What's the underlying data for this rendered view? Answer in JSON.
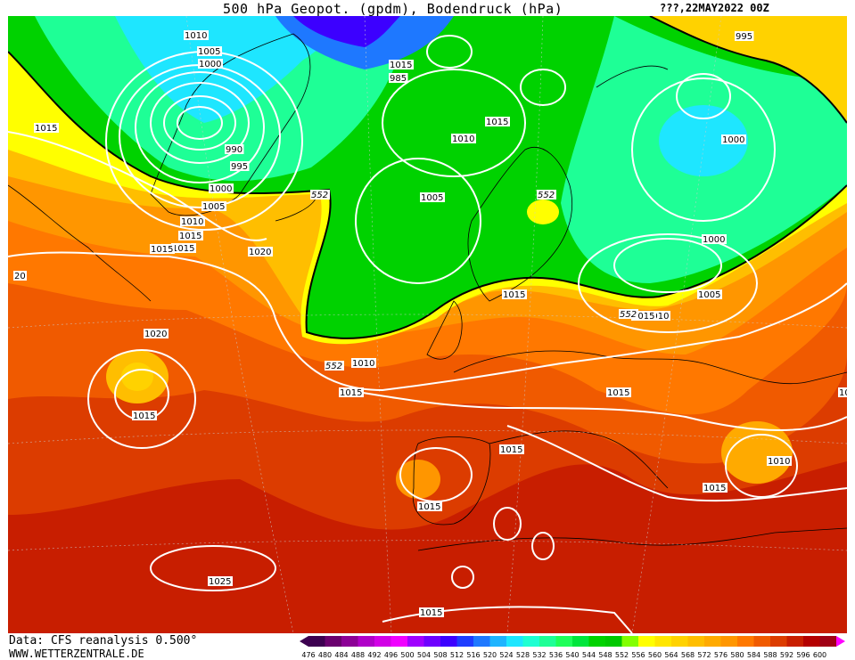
{
  "title": "500 hPa Geopot. (gpdm), Bodendruck (hPa)",
  "date": "???,22MAY2022 00Z",
  "data_source": "Data: CFS reanalysis 0.500°",
  "website": "WWW.WETTERZENTRALE.DE",
  "legend": {
    "values": [
      "476",
      "480",
      "484",
      "488",
      "492",
      "496",
      "500",
      "504",
      "508",
      "512",
      "516",
      "520",
      "524",
      "528",
      "532",
      "536",
      "540",
      "544",
      "548",
      "552",
      "556",
      "560",
      "564",
      "568",
      "572",
      "576",
      "580",
      "584",
      "588",
      "592",
      "596",
      "600"
    ],
    "colors": [
      "#3c0050",
      "#6a006e",
      "#8c0096",
      "#b000c8",
      "#d200e6",
      "#f000ff",
      "#a000ff",
      "#6e00ff",
      "#3c00ff",
      "#1e3cff",
      "#1e78ff",
      "#1eb4ff",
      "#1ee6ff",
      "#1effd2",
      "#1eff96",
      "#1eff5a",
      "#00e63c",
      "#00d200",
      "#00c800",
      "#82ff00",
      "#ffff00",
      "#ffe600",
      "#ffd200",
      "#ffbe00",
      "#ffaa00",
      "#ff9600",
      "#ff7800",
      "#f05a00",
      "#dc3c00",
      "#c81e00",
      "#b40000",
      "#a00014"
    ],
    "arrow_left_color": "#3c0050",
    "arrow_right_color": "#ff00ff"
  },
  "isobar_labels": [
    "1010",
    "1005",
    "1000",
    "1015",
    "1015",
    "985",
    "990",
    "995",
    "1000",
    "1005",
    "1010",
    "1015",
    "1015",
    "1010",
    "1015",
    "1005",
    "1015",
    "995",
    "1000",
    "1000",
    "1005",
    "1010",
    "1020",
    "1020",
    "1015",
    "1015",
    "1010",
    "1015",
    "1015",
    "1015",
    "1015",
    "1010",
    "1015",
    "1025",
    "1015",
    "1015",
    "20",
    "10"
  ],
  "height_labels": [
    "552",
    "552",
    "552",
    "552"
  ]
}
